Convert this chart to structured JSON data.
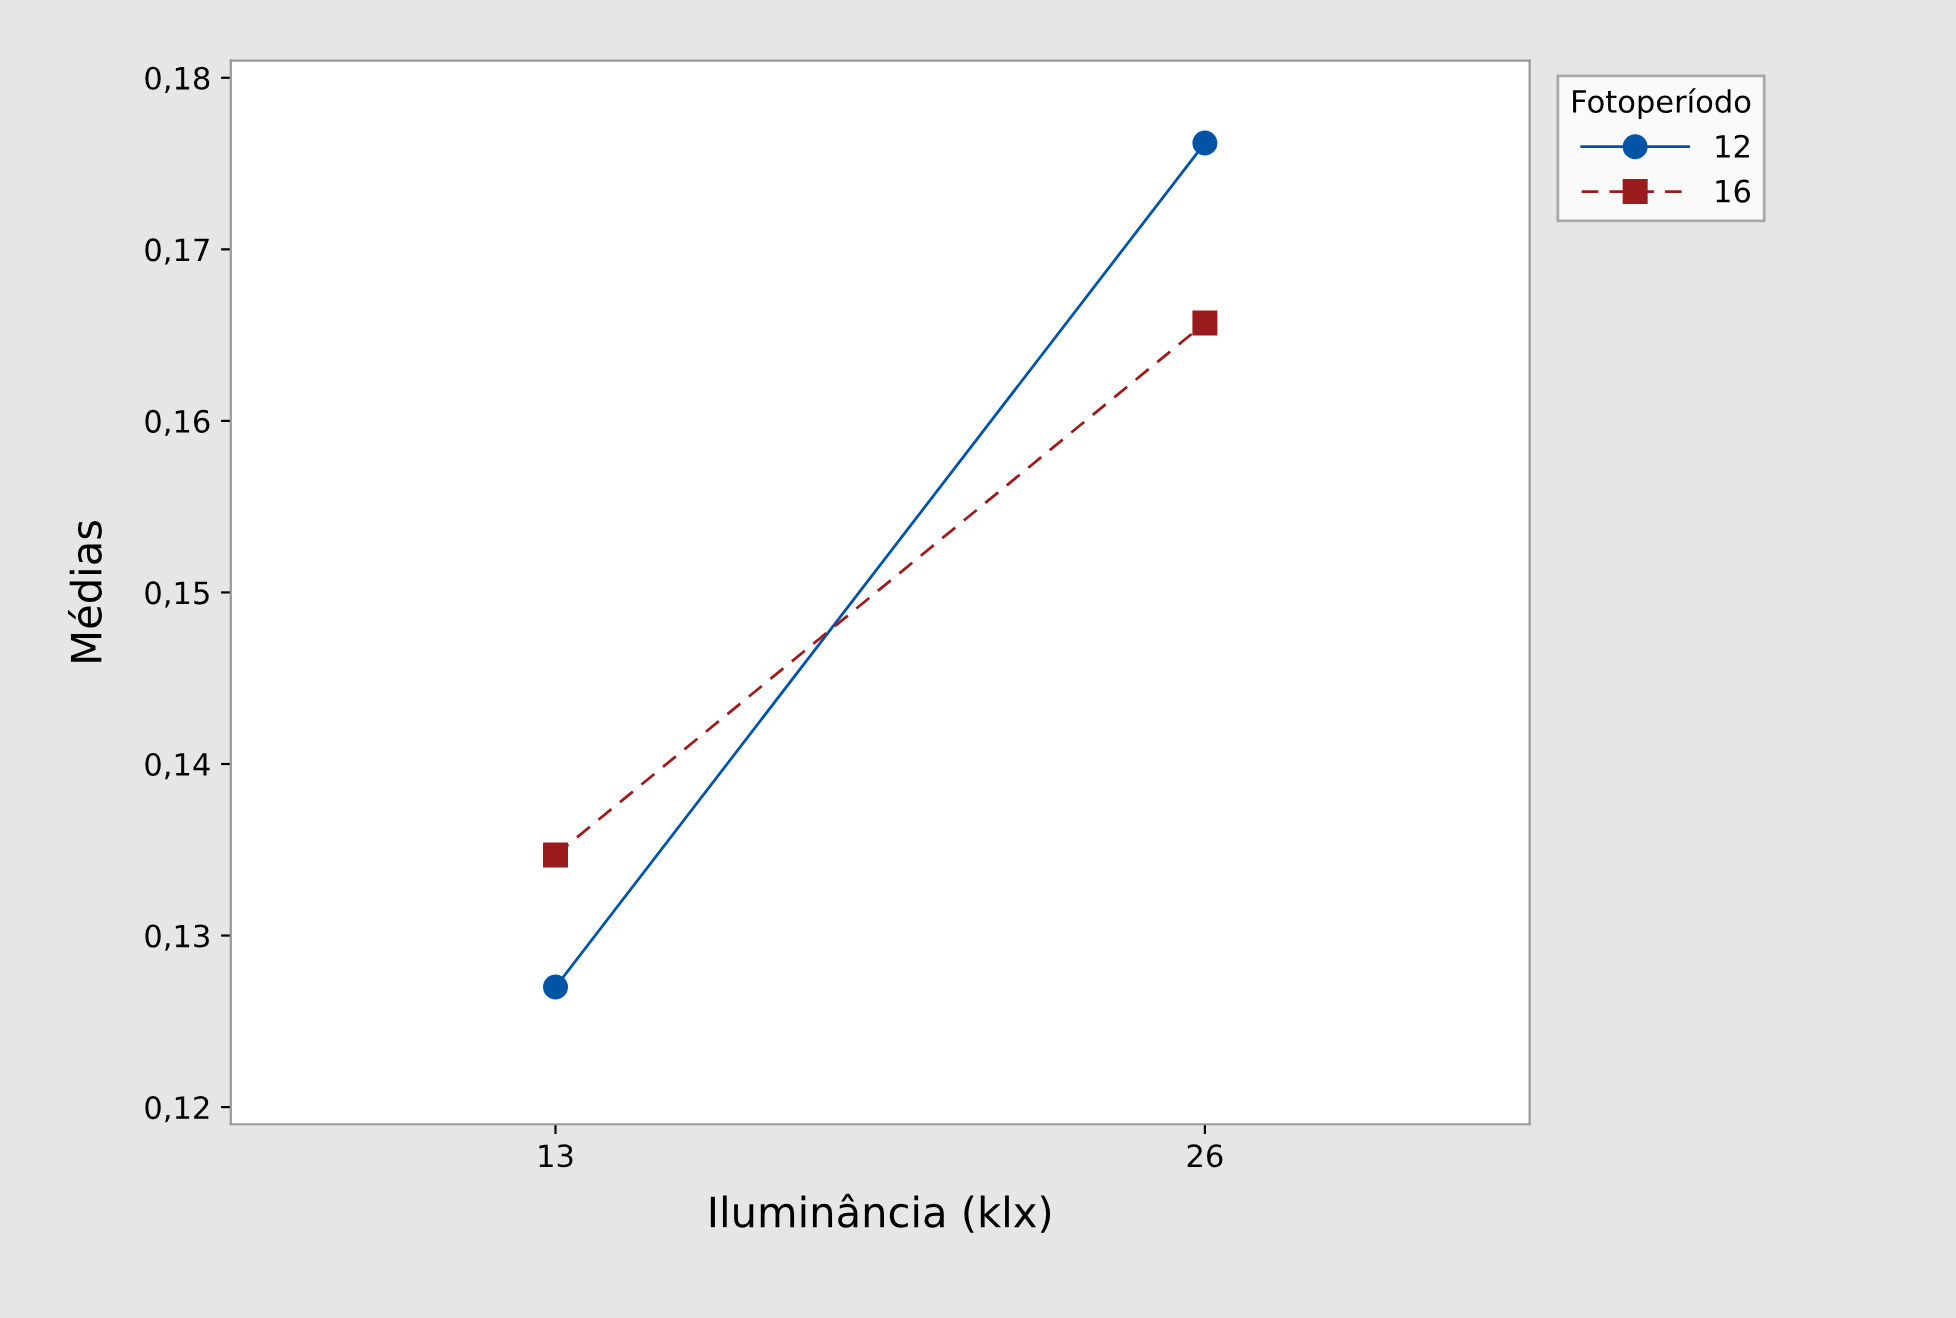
{
  "chart_data": {
    "type": "line",
    "xlabel": "Iluminância (klx)",
    "ylabel": "Médias",
    "legend_title": "Fotoperíodo",
    "categories": [
      "13",
      "26"
    ],
    "series": [
      {
        "name": "12",
        "color": "#0054a6",
        "values": [
          0.127,
          0.1762
        ],
        "marker": "circle",
        "line_style": "solid"
      },
      {
        "name": "16",
        "color": "#9b1c1c",
        "values": [
          0.1347,
          0.1657
        ],
        "marker": "square",
        "line_style": "dashed"
      }
    ],
    "ylim": [
      0.119,
      0.181
    ],
    "yticks": [
      {
        "value": 0.12,
        "label": "0,12"
      },
      {
        "value": 0.13,
        "label": "0,13"
      },
      {
        "value": 0.14,
        "label": "0,14"
      },
      {
        "value": 0.15,
        "label": "0,15"
      },
      {
        "value": 0.16,
        "label": "0,16"
      },
      {
        "value": 0.17,
        "label": "0,17"
      },
      {
        "value": 0.18,
        "label": "0,18"
      }
    ],
    "grid": false,
    "legend": "right"
  }
}
